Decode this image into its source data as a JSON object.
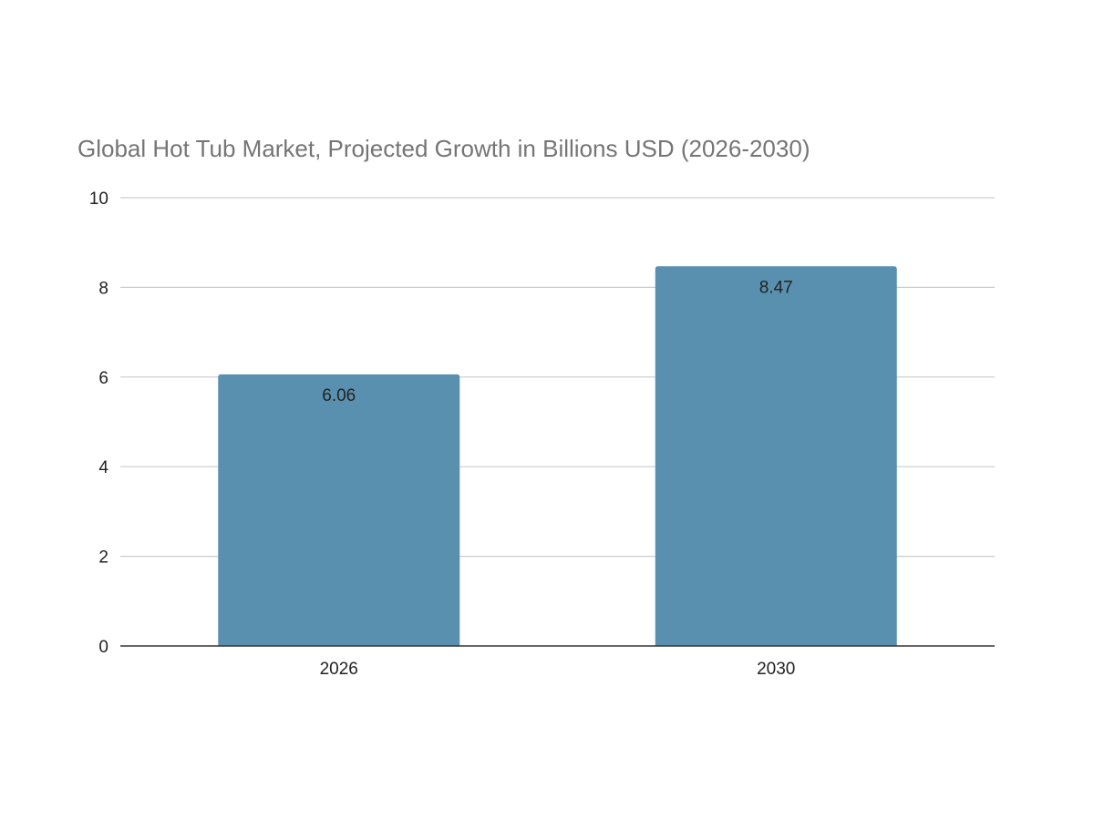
{
  "chart_data": {
    "type": "bar",
    "title": "Global Hot Tub Market, Projected Growth in Billions USD (2026-2030)",
    "categories": [
      "2026",
      "2030"
    ],
    "values": [
      6.06,
      8.47
    ],
    "data_labels": [
      "6.06",
      "8.47"
    ],
    "ylim": [
      0,
      10
    ],
    "yticks": [
      0,
      2,
      4,
      6,
      8,
      10
    ],
    "ytick_labels": [
      "0",
      "2",
      "4",
      "6",
      "8",
      "10"
    ],
    "xlabel": "",
    "ylabel": "",
    "grid": true,
    "legend": "none",
    "colors": {
      "bar": "#5990af",
      "grid": "#cccccc",
      "axis": "#333333",
      "title": "#757575",
      "text": "#222222"
    }
  }
}
